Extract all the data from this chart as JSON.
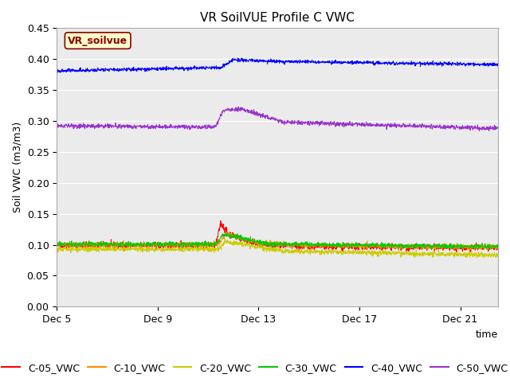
{
  "title": "VR SoilVUE Profile C VWC",
  "ylabel": "Soil VWC (m3/m3)",
  "xlabel": "time",
  "ylim": [
    0.0,
    0.45
  ],
  "yticks": [
    0.0,
    0.05,
    0.1,
    0.15,
    0.2,
    0.25,
    0.3,
    0.35,
    0.4,
    0.45
  ],
  "fig_bg_color": "#ffffff",
  "plot_bg_color": "#ebebeb",
  "legend_label": "VR_soilvue",
  "legend_bg": "#ffffcc",
  "legend_border": "#8b0000",
  "series_colors": {
    "C-05_VWC": "#ff0000",
    "C-10_VWC": "#ff8c00",
    "C-20_VWC": "#cccc00",
    "C-30_VWC": "#00cc00",
    "C-40_VWC": "#0000ff",
    "C-50_VWC": "#9932cc"
  },
  "xtick_days": [
    5,
    9,
    13,
    17,
    21
  ],
  "start_day": 5,
  "end_day": 22.5,
  "title_fontsize": 11,
  "axis_fontsize": 9,
  "tick_fontsize": 9,
  "legend_fontsize": 9,
  "n_points": 1700
}
